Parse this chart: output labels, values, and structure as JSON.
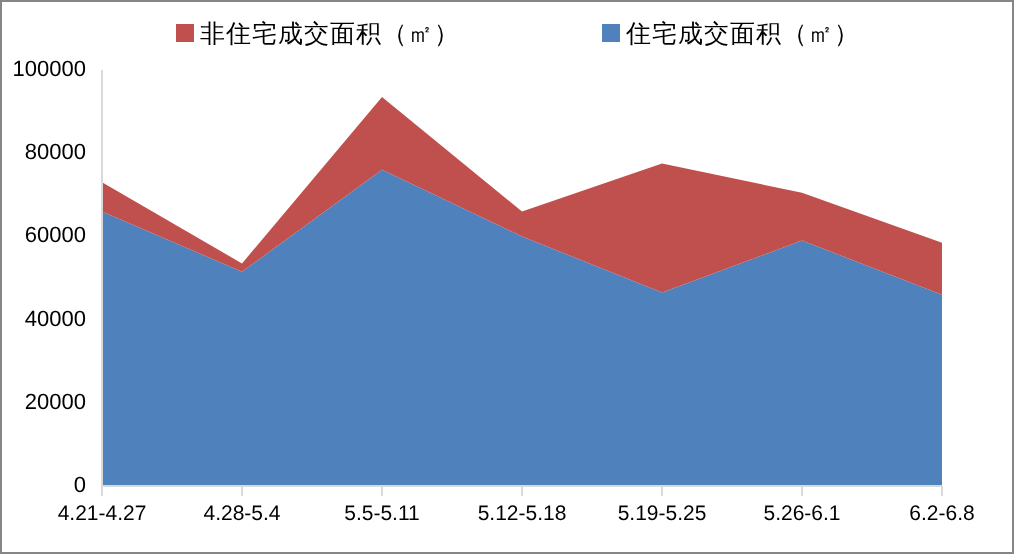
{
  "chart_data": {
    "type": "area",
    "stacked": true,
    "categories": [
      "4.21-4.27",
      "4.28-5.4",
      "5.5-5.11",
      "5.12-5.18",
      "5.19-5.25",
      "5.26-6.1",
      "6.2-6.8"
    ],
    "series": [
      {
        "name": "住宅成交面积（㎡）",
        "color": "#4f81bd",
        "values": [
          66000,
          51500,
          76000,
          60000,
          46500,
          59000,
          46000
        ]
      },
      {
        "name": "非住宅成交面积（㎡）",
        "color": "#c0504d",
        "values": [
          7000,
          2000,
          17500,
          6000,
          31000,
          11500,
          12500
        ]
      }
    ],
    "ylim": [
      0,
      100000
    ],
    "yticks": [
      0,
      20000,
      40000,
      60000,
      80000,
      100000
    ],
    "grid": false,
    "legend": "top"
  }
}
